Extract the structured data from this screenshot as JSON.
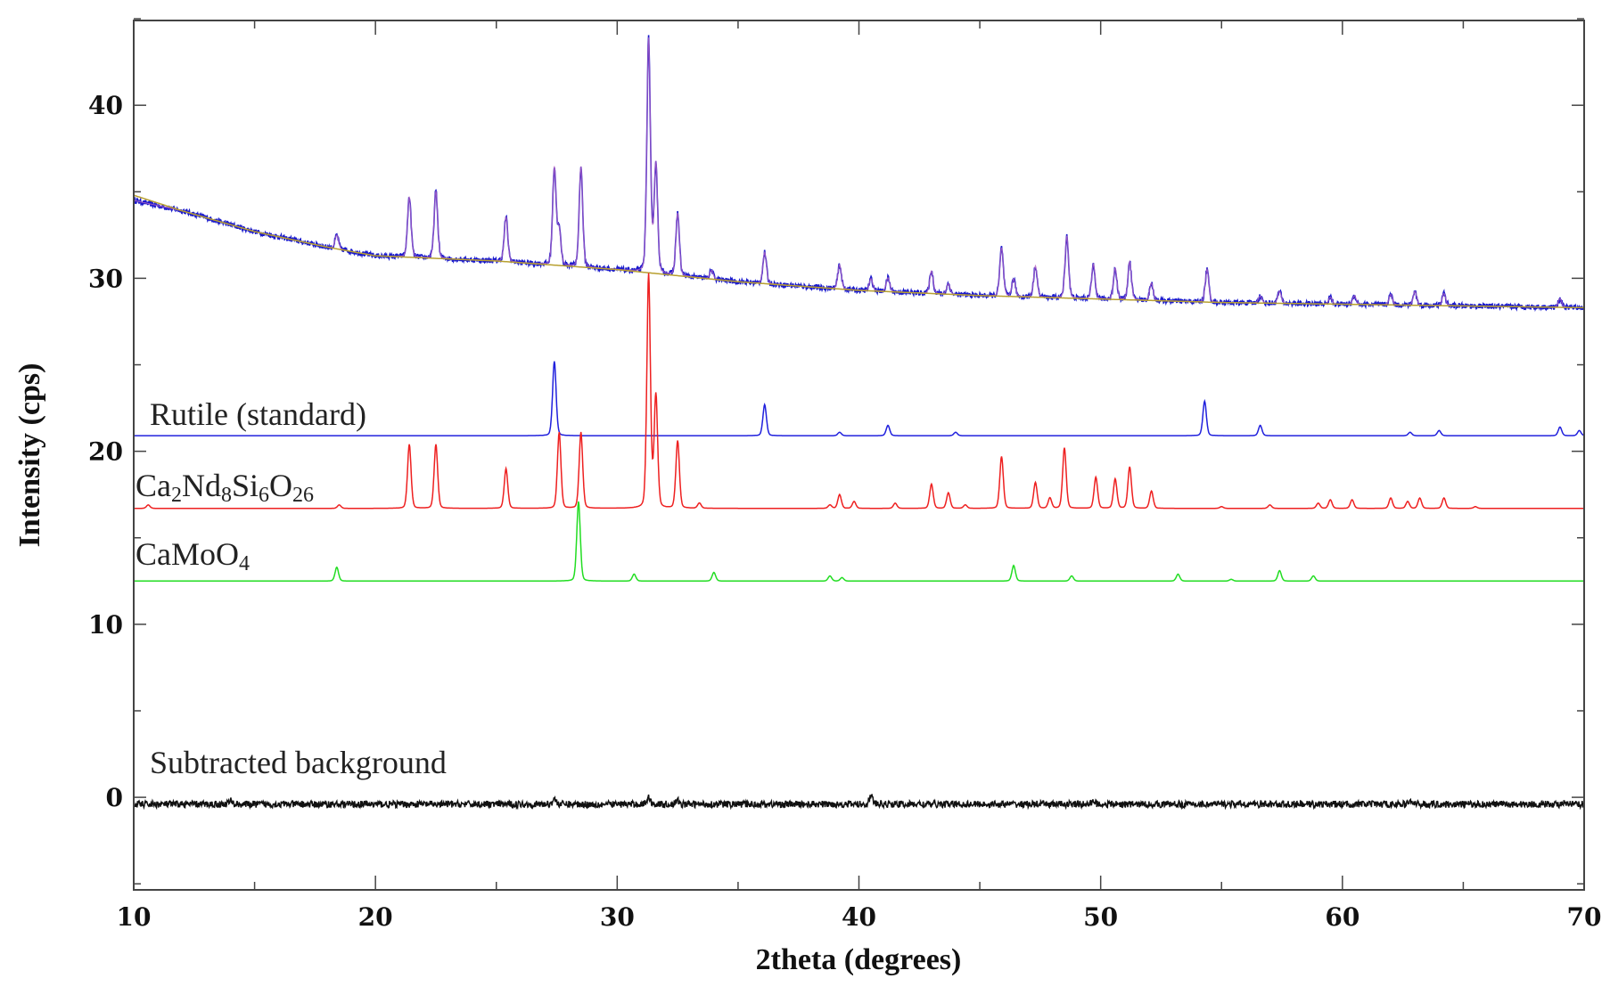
{
  "chart_data": {
    "type": "line",
    "title": "",
    "xlabel": "2theta (degrees)",
    "ylabel": "Intensity (cps)",
    "xlim": [
      10,
      70
    ],
    "ylim": [
      -5.35,
      44.9
    ],
    "xticks": [
      10,
      20,
      30,
      40,
      50,
      60,
      70
    ],
    "yticks": [
      0,
      10,
      20,
      30,
      40
    ],
    "grid": false,
    "legend": "none",
    "series": [
      {
        "key": "observed",
        "color": "#1a1acc",
        "noise": 0.15,
        "background": [
          [
            10,
            34.5
          ],
          [
            12,
            33.9
          ],
          [
            15,
            32.7
          ],
          [
            18,
            31.8
          ],
          [
            20,
            31.3
          ],
          [
            25,
            31.0
          ],
          [
            30,
            30.5
          ],
          [
            35,
            29.8
          ],
          [
            40,
            29.3
          ],
          [
            45,
            29.0
          ],
          [
            50,
            28.8
          ],
          [
            55,
            28.6
          ],
          [
            60,
            28.5
          ],
          [
            65,
            28.4
          ],
          [
            70,
            28.3
          ]
        ],
        "peaks": [
          [
            18.4,
            0.8
          ],
          [
            21.4,
            3.5
          ],
          [
            22.5,
            3.9
          ],
          [
            25.4,
            2.6
          ],
          [
            27.4,
            5.6
          ],
          [
            27.6,
            2.0
          ],
          [
            28.5,
            5.8
          ],
          [
            31.3,
            13.5
          ],
          [
            31.6,
            6.3
          ],
          [
            32.5,
            3.6
          ],
          [
            33.9,
            0.5
          ],
          [
            36.1,
            1.8
          ],
          [
            39.2,
            1.4
          ],
          [
            40.5,
            0.7
          ],
          [
            41.2,
            0.8
          ],
          [
            43.0,
            1.3
          ],
          [
            43.7,
            0.6
          ],
          [
            45.9,
            2.8
          ],
          [
            46.4,
            1.0
          ],
          [
            47.3,
            1.8
          ],
          [
            48.6,
            3.6
          ],
          [
            49.7,
            2.0
          ],
          [
            50.6,
            1.8
          ],
          [
            51.2,
            2.2
          ],
          [
            52.1,
            1.0
          ],
          [
            54.4,
            1.9
          ],
          [
            56.6,
            0.4
          ],
          [
            57.4,
            0.7
          ],
          [
            59.5,
            0.4
          ],
          [
            60.5,
            0.5
          ],
          [
            62.0,
            0.6
          ],
          [
            63.0,
            0.8
          ],
          [
            64.2,
            0.7
          ],
          [
            69.0,
            0.5
          ]
        ]
      },
      {
        "key": "background-fit",
        "color": "#b8a030",
        "background": [
          [
            10,
            34.8
          ],
          [
            12,
            33.9
          ],
          [
            15,
            32.7
          ],
          [
            18,
            31.8
          ],
          [
            20,
            31.3
          ],
          [
            25,
            31.0
          ],
          [
            30,
            30.5
          ],
          [
            35,
            29.8
          ],
          [
            40,
            29.3
          ],
          [
            45,
            29.0
          ],
          [
            50,
            28.8
          ],
          [
            55,
            28.6
          ],
          [
            60,
            28.5
          ],
          [
            65,
            28.4
          ],
          [
            70,
            28.3
          ]
        ],
        "peaks": []
      },
      {
        "key": "rutile",
        "name": "Rutile (standard)",
        "color": "#2020dd",
        "baseline": 20.9,
        "peaks": [
          [
            27.4,
            4.3
          ],
          [
            36.1,
            1.8
          ],
          [
            39.2,
            0.2
          ],
          [
            41.2,
            0.6
          ],
          [
            44.0,
            0.2
          ],
          [
            54.3,
            2.0
          ],
          [
            56.6,
            0.6
          ],
          [
            62.8,
            0.2
          ],
          [
            64.0,
            0.3
          ],
          [
            69.0,
            0.5
          ],
          [
            69.8,
            0.3
          ]
        ]
      },
      {
        "key": "ca2nd8si6o26",
        "name": "Ca2Nd8Si6O26",
        "color": "#ee2020",
        "baseline": 16.7,
        "peaks": [
          [
            10.6,
            0.2
          ],
          [
            18.5,
            0.2
          ],
          [
            21.4,
            3.7
          ],
          [
            22.5,
            3.7
          ],
          [
            25.4,
            2.3
          ],
          [
            27.6,
            4.4
          ],
          [
            28.5,
            4.4
          ],
          [
            31.3,
            13.5
          ],
          [
            31.6,
            6.5
          ],
          [
            32.5,
            3.9
          ],
          [
            33.4,
            0.3
          ],
          [
            38.8,
            0.2
          ],
          [
            39.2,
            0.8
          ],
          [
            39.8,
            0.4
          ],
          [
            41.5,
            0.3
          ],
          [
            43.0,
            1.4
          ],
          [
            43.7,
            0.9
          ],
          [
            44.4,
            0.2
          ],
          [
            45.9,
            3.0
          ],
          [
            47.3,
            1.5
          ],
          [
            47.9,
            0.6
          ],
          [
            48.5,
            3.5
          ],
          [
            49.8,
            1.8
          ],
          [
            50.6,
            1.7
          ],
          [
            51.2,
            2.4
          ],
          [
            52.1,
            1.0
          ],
          [
            55.0,
            0.1
          ],
          [
            57.0,
            0.2
          ],
          [
            59.0,
            0.3
          ],
          [
            59.5,
            0.5
          ],
          [
            60.4,
            0.5
          ],
          [
            62.0,
            0.6
          ],
          [
            62.7,
            0.4
          ],
          [
            63.2,
            0.6
          ],
          [
            64.2,
            0.6
          ],
          [
            65.5,
            0.1
          ]
        ]
      },
      {
        "key": "camoo4",
        "name": "CaMoO4",
        "color": "#22dd22",
        "baseline": 12.5,
        "peaks": [
          [
            18.4,
            0.8
          ],
          [
            28.4,
            4.6
          ],
          [
            30.7,
            0.4
          ],
          [
            34.0,
            0.5
          ],
          [
            38.8,
            0.3
          ],
          [
            39.3,
            0.2
          ],
          [
            46.4,
            0.9
          ],
          [
            48.8,
            0.3
          ],
          [
            53.2,
            0.4
          ],
          [
            55.4,
            0.1
          ],
          [
            57.4,
            0.6
          ],
          [
            58.8,
            0.3
          ]
        ]
      },
      {
        "key": "subtracted",
        "name": "Subtracted background",
        "color": "#111111",
        "baseline": -0.4,
        "noise": 0.2,
        "peaks": [
          [
            14,
            0.2
          ],
          [
            27.4,
            0.3
          ],
          [
            31.3,
            0.4
          ],
          [
            32.5,
            0.2
          ],
          [
            40.5,
            0.5
          ],
          [
            49.7,
            0.2
          ],
          [
            62.8,
            0.2
          ]
        ]
      }
    ]
  }
}
